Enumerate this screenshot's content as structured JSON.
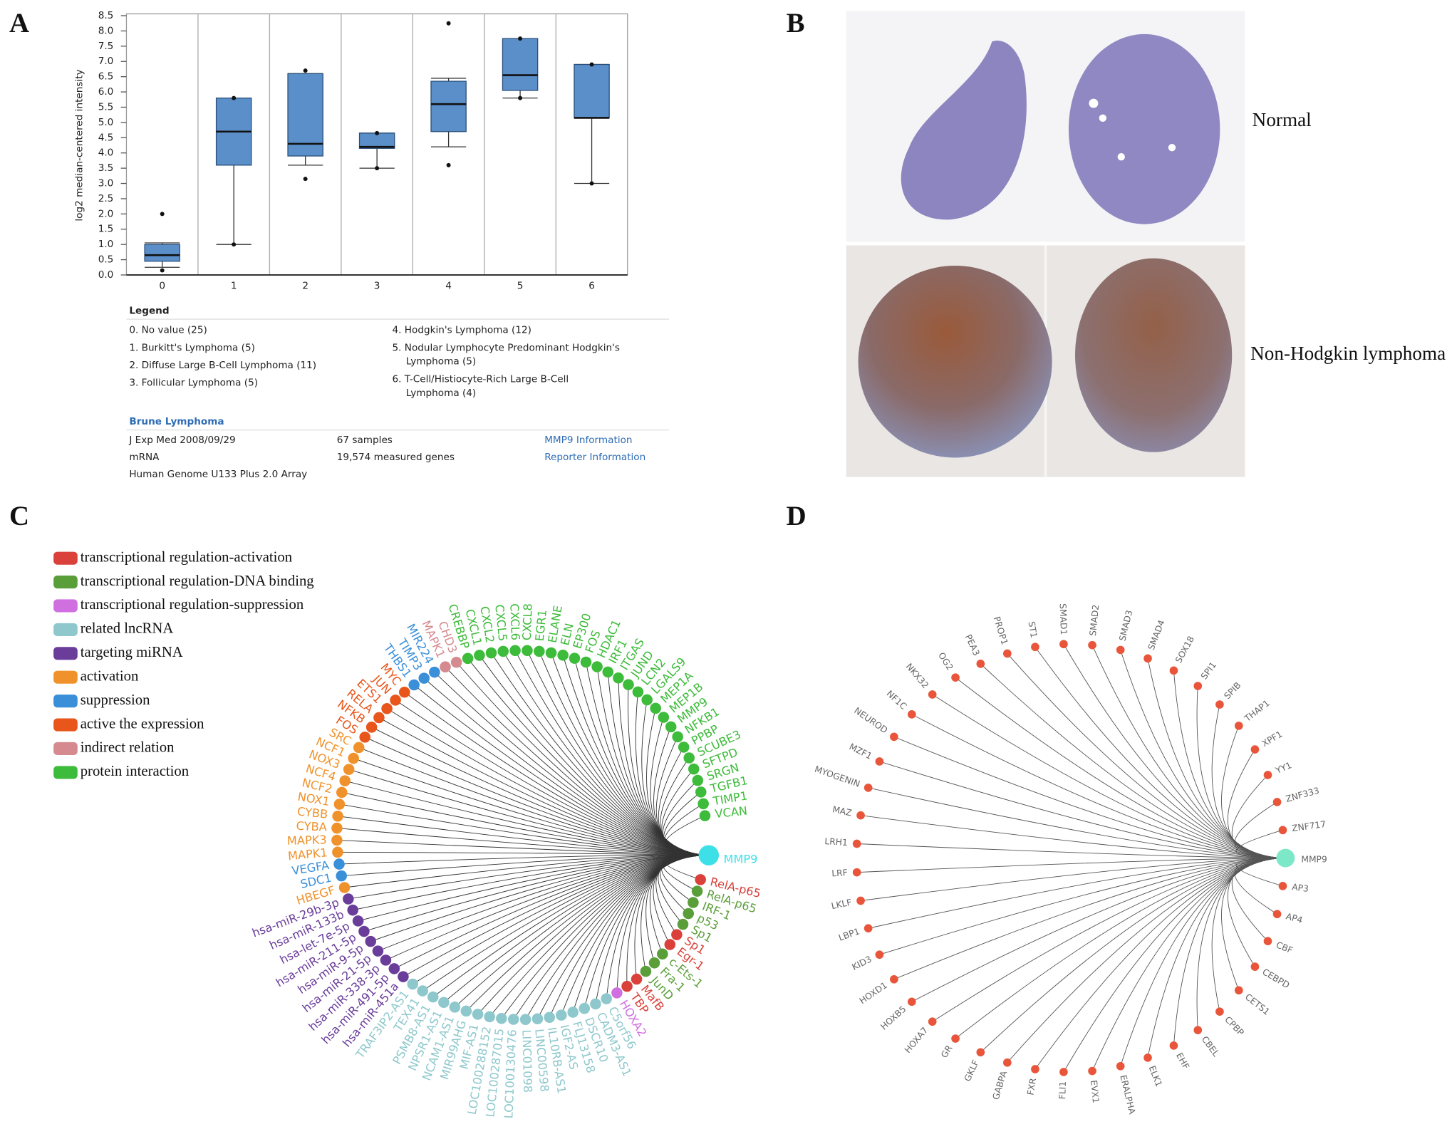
{
  "panel_labels": [
    "A",
    "B",
    "C",
    "D"
  ],
  "chart_data": {
    "type": "box",
    "ylabel": "log2 median-centered intensity",
    "color": "#5b8fc9",
    "categories": [
      "0",
      "1",
      "2",
      "3",
      "4",
      "5",
      "6"
    ],
    "low": [
      0.25,
      1.0,
      3.6,
      3.5,
      4.2,
      5.8,
      3.0
    ],
    "q1": [
      0.45,
      3.6,
      3.9,
      4.15,
      4.7,
      6.05,
      5.15
    ],
    "median": [
      0.65,
      4.7,
      4.3,
      4.2,
      5.6,
      6.55,
      5.15
    ],
    "q3": [
      1.0,
      5.8,
      6.6,
      4.65,
      6.35,
      7.75,
      6.9
    ],
    "high": [
      1.05,
      5.8,
      6.6,
      4.65,
      6.45,
      7.75,
      6.9
    ],
    "outliers": [
      [
        2.0,
        0.15
      ],
      [
        5.8,
        1.0
      ],
      [
        6.7,
        3.15
      ],
      [
        4.65,
        3.5
      ],
      [
        8.25,
        3.6
      ],
      [
        7.75,
        5.8
      ],
      [
        6.9,
        3.0
      ]
    ],
    "ylim": [
      0,
      8.5
    ],
    "yticks": [
      {
        "value": 0,
        "label": "0.0"
      },
      0.5,
      {
        "value": 1,
        "label": "1.0"
      },
      1.5,
      {
        "value": 2,
        "label": "2.0"
      },
      2.5,
      {
        "value": 3,
        "label": "3.0"
      },
      3.5,
      {
        "value": 4,
        "label": "4.0"
      },
      4.5,
      {
        "value": 5,
        "label": "5.0"
      },
      5.5,
      {
        "value": 6,
        "label": "6.0"
      },
      6.5,
      {
        "value": 7,
        "label": "7.0"
      },
      7.5,
      {
        "value": 8,
        "label": "8.0"
      },
      8.5
    ]
  },
  "legend": {
    "title": "Legend",
    "items": [
      [
        "0. No value (25)"
      ],
      [
        "1. Burkitt's Lymphoma (5)"
      ],
      [
        "2. Diffuse Large B-Cell Lymphoma (11)"
      ],
      [
        "3. Follicular Lymphoma (5)"
      ],
      [
        "4. Hodgkin's Lymphoma (12)"
      ],
      [
        "5. Nodular Lymphocyte Predominant Hodgkin's",
        "Lymphoma (5)"
      ],
      [
        "6. T-Cell/Histiocyte-Rich Large B-Cell",
        "Lymphoma (4)"
      ]
    ]
  },
  "dataset": {
    "title": "Brune Lymphoma",
    "rows": [
      [
        "J Exp Med 2008/09/29",
        "67 samples",
        "MMP9 Information"
      ],
      [
        "mRNA",
        "19,574 measured genes",
        "Reporter Information"
      ],
      [
        "Human Genome U133 Plus 2.0 Array"
      ]
    ]
  },
  "panel_b": {
    "labels": [
      "Normal",
      "Non-Hodgkin lymphoma"
    ]
  },
  "panel_c": {
    "groups": [
      {
        "name": "transcriptional regulation-activation",
        "color": "#d9413a"
      },
      {
        "name": "transcriptional regulation-DNA binding",
        "color": "#5a9e3a"
      },
      {
        "name": "transcriptional regulation-suppression",
        "color": "#d070e0"
      },
      {
        "name": "related lncRNA",
        "color": "#8ec8cc"
      },
      {
        "name": "targeting miRNA",
        "color": "#6a3d9a"
      },
      {
        "name": "activation",
        "color": "#f0922b"
      },
      {
        "name": "suppression",
        "color": "#3a8fd9"
      },
      {
        "name": "active the expression",
        "color": "#e8561c"
      },
      {
        "name": "indirect relation",
        "color": "#d48a8f"
      },
      {
        "name": "protein interaction",
        "color": "#3dbb3a"
      }
    ],
    "center": "MMP9",
    "center_color": "#3ee0e8",
    "nodes": [
      {
        "label": "VCAN",
        "color": "#3dbb3a"
      },
      {
        "label": "TIMP1",
        "color": "#3dbb3a"
      },
      {
        "label": "TGFB1",
        "color": "#3dbb3a"
      },
      {
        "label": "SRGN",
        "color": "#3dbb3a"
      },
      {
        "label": "SFTPD",
        "color": "#3dbb3a"
      },
      {
        "label": "SCUBE3",
        "color": "#3dbb3a"
      },
      {
        "label": "PPBP",
        "color": "#3dbb3a"
      },
      {
        "label": "NFKB1",
        "color": "#3dbb3a"
      },
      {
        "label": "MMP9",
        "color": "#3dbb3a"
      },
      {
        "label": "MEP1B",
        "color": "#3dbb3a"
      },
      {
        "label": "MEP1A",
        "color": "#3dbb3a"
      },
      {
        "label": "LGALS9",
        "color": "#3dbb3a"
      },
      {
        "label": "LCN2",
        "color": "#3dbb3a"
      },
      {
        "label": "JUND",
        "color": "#3dbb3a"
      },
      {
        "label": "ITGAS",
        "color": "#3dbb3a"
      },
      {
        "label": "IRF1",
        "color": "#3dbb3a"
      },
      {
        "label": "HDAC1",
        "color": "#3dbb3a"
      },
      {
        "label": "FOS",
        "color": "#3dbb3a"
      },
      {
        "label": "EP300",
        "color": "#3dbb3a"
      },
      {
        "label": "ELN",
        "color": "#3dbb3a"
      },
      {
        "label": "ELANE",
        "color": "#3dbb3a"
      },
      {
        "label": "EGR1",
        "color": "#3dbb3a"
      },
      {
        "label": "CXCL8",
        "color": "#3dbb3a"
      },
      {
        "label": "CXCL6",
        "color": "#3dbb3a"
      },
      {
        "label": "CXCL5",
        "color": "#3dbb3a"
      },
      {
        "label": "CXCL2",
        "color": "#3dbb3a"
      },
      {
        "label": "CXCL1",
        "color": "#3dbb3a"
      },
      {
        "label": "CREBBP",
        "color": "#3dbb3a"
      },
      {
        "label": "CHD3",
        "color": "#d48a8f"
      },
      {
        "label": "MAPK1",
        "color": "#d48a8f"
      },
      {
        "label": "MIR224",
        "color": "#3a8fd9"
      },
      {
        "label": "TIMP3",
        "color": "#3a8fd9"
      },
      {
        "label": "THBS1",
        "color": "#3a8fd9"
      },
      {
        "label": "MYC",
        "color": "#e8561c"
      },
      {
        "label": "JUN",
        "color": "#e8561c"
      },
      {
        "label": "ETS1",
        "color": "#e8561c"
      },
      {
        "label": "RELA",
        "color": "#e8561c"
      },
      {
        "label": "NFKB",
        "color": "#e8561c"
      },
      {
        "label": "FOS",
        "color": "#e8561c"
      },
      {
        "label": "SRC",
        "color": "#f0922b"
      },
      {
        "label": "NCF1",
        "color": "#f0922b"
      },
      {
        "label": "NOX3",
        "color": "#f0922b"
      },
      {
        "label": "NCF4",
        "color": "#f0922b"
      },
      {
        "label": "NCF2",
        "color": "#f0922b"
      },
      {
        "label": "NOX1",
        "color": "#f0922b"
      },
      {
        "label": "CYBB",
        "color": "#f0922b"
      },
      {
        "label": "CYBA",
        "color": "#f0922b"
      },
      {
        "label": "MAPK3",
        "color": "#f0922b"
      },
      {
        "label": "MAPK1",
        "color": "#f0922b"
      },
      {
        "label": "VEGFA",
        "color": "#3a8fd9"
      },
      {
        "label": "SDC1",
        "color": "#3a8fd9"
      },
      {
        "label": "HBEGF",
        "color": "#f0922b"
      },
      {
        "label": "hsa-miR-29b-3p",
        "color": "#6a3d9a"
      },
      {
        "label": "hsa-miR-133b",
        "color": "#6a3d9a"
      },
      {
        "label": "hsa-let-7e-5p",
        "color": "#6a3d9a"
      },
      {
        "label": "hsa-miR-211-5p",
        "color": "#6a3d9a"
      },
      {
        "label": "hsa-miR-9-5p",
        "color": "#6a3d9a"
      },
      {
        "label": "hsa-miR-21-5p",
        "color": "#6a3d9a"
      },
      {
        "label": "hsa-miR-338-3p",
        "color": "#6a3d9a"
      },
      {
        "label": "hsa-miR-491-5p",
        "color": "#6a3d9a"
      },
      {
        "label": "hsa-miR-451a",
        "color": "#6a3d9a"
      },
      {
        "label": "TRAF3IP2-AS1",
        "color": "#8ec8cc"
      },
      {
        "label": "TEX41",
        "color": "#8ec8cc"
      },
      {
        "label": "PSMB8-AS1",
        "color": "#8ec8cc"
      },
      {
        "label": "NPSR1-AS1",
        "color": "#8ec8cc"
      },
      {
        "label": "NCAM1-AS1",
        "color": "#8ec8cc"
      },
      {
        "label": "MIR99AHG",
        "color": "#8ec8cc"
      },
      {
        "label": "MIF-AS1",
        "color": "#8ec8cc"
      },
      {
        "label": "LOC100288152",
        "color": "#8ec8cc"
      },
      {
        "label": "LOC100287015",
        "color": "#8ec8cc"
      },
      {
        "label": "LOC100130476",
        "color": "#8ec8cc"
      },
      {
        "label": "LINC01098",
        "color": "#8ec8cc"
      },
      {
        "label": "LINC00598",
        "color": "#8ec8cc"
      },
      {
        "label": "IL10RB-AS1",
        "color": "#8ec8cc"
      },
      {
        "label": "IGF2-AS",
        "color": "#8ec8cc"
      },
      {
        "label": "FLJ13158",
        "color": "#8ec8cc"
      },
      {
        "label": "DSCR10",
        "color": "#8ec8cc"
      },
      {
        "label": "CADM3-AS1",
        "color": "#8ec8cc"
      },
      {
        "label": "C5orf56",
        "color": "#8ec8cc"
      },
      {
        "label": "HOXA2",
        "color": "#d070e0"
      },
      {
        "label": "TBP",
        "color": "#d9413a"
      },
      {
        "label": "MafB",
        "color": "#d9413a"
      },
      {
        "label": "JunD",
        "color": "#5a9e3a"
      },
      {
        "label": "Fra-1",
        "color": "#5a9e3a"
      },
      {
        "label": "c-Ets-1",
        "color": "#5a9e3a"
      },
      {
        "label": "Egr-1",
        "color": "#d9413a"
      },
      {
        "label": "Sp1",
        "color": "#d9413a"
      },
      {
        "label": "Sp1",
        "color": "#5a9e3a"
      },
      {
        "label": "p53",
        "color": "#5a9e3a"
      },
      {
        "label": "IRF-1",
        "color": "#5a9e3a"
      },
      {
        "label": "RelA-p65",
        "color": "#5a9e3a"
      },
      {
        "label": "RelA-p65",
        "color": "#d9413a"
      }
    ]
  },
  "panel_d": {
    "center": "MMP9",
    "center_color": "#7de8c8",
    "node_color": "#e8553a",
    "nodes": [
      "ZNF717",
      "ZNF333",
      "YY1",
      "XPF1",
      "THAP1",
      "SPIB",
      "SPI1",
      "SOX18",
      "SMAD4",
      "SMAD3",
      "SMAD2",
      "SMAD1",
      "ST1",
      "PROP1",
      "PEA3",
      "OG2",
      "NKX32",
      "NF1C",
      "NEUROD",
      "MZF1",
      "MYOGENIN",
      "MAZ",
      "LRH1",
      "LRF",
      "LKLF",
      "LBP1",
      "KID3",
      "HOXD1",
      "HOXB5",
      "HOXA7",
      "GR",
      "GKLF",
      "GABPA",
      "FXR",
      "FLI1",
      "EVX1",
      "ERALPHA",
      "ELK1",
      "EHF",
      "CBEL",
      "CPBP",
      "CETS1",
      "CEBPD",
      "CBF",
      "AP4",
      "AP3"
    ]
  }
}
